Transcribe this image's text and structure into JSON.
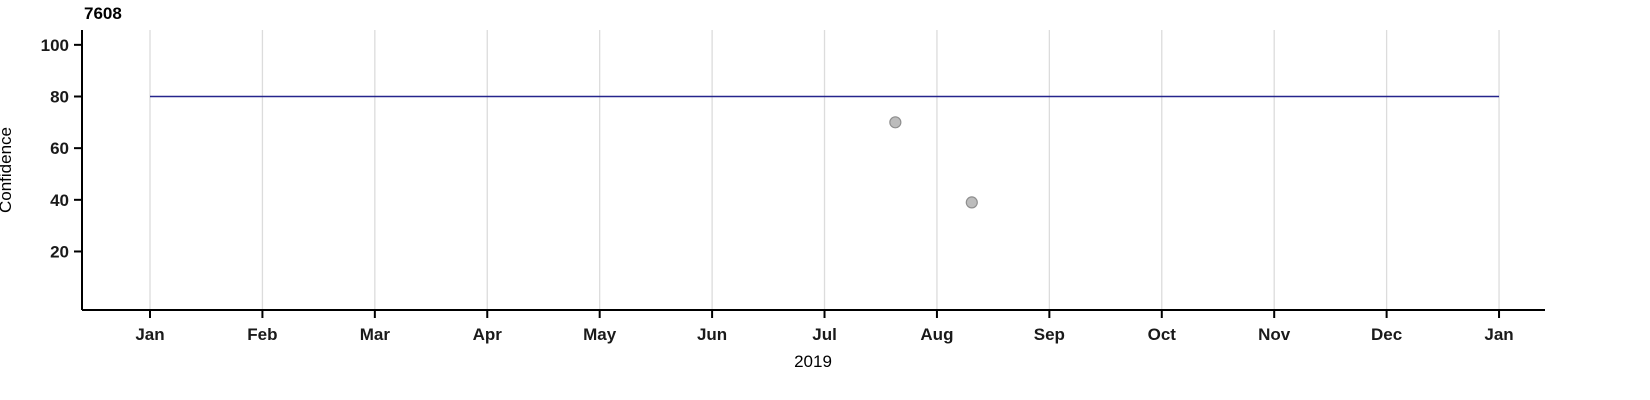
{
  "chart_data": {
    "type": "scatter",
    "title": "7608",
    "xlabel": "2019",
    "ylabel": "Confidence",
    "x_ticks": [
      "Jan",
      "Feb",
      "Mar",
      "Apr",
      "May",
      "Jun",
      "Jul",
      "Aug",
      "Sep",
      "Oct",
      "Nov",
      "Dec",
      "Jan"
    ],
    "y_ticks": [
      20,
      40,
      60,
      80,
      100
    ],
    "ylim": [
      -3,
      105
    ],
    "grid": "vertical-month-gridlines-only",
    "legend": "none",
    "series": [
      {
        "name": "threshold-line",
        "type": "line",
        "color": "#26258c",
        "points": [
          {
            "month_frac": 0,
            "value": 80
          },
          {
            "month_frac": 12,
            "value": 80
          }
        ]
      },
      {
        "name": "observations",
        "type": "scatter",
        "color": "#bcbcbc",
        "stroke": "#8f8f8f",
        "points": [
          {
            "month_frac": 6.63,
            "value": 70
          },
          {
            "month_frac": 7.31,
            "value": 39
          }
        ]
      }
    ],
    "colors": {
      "axis": "#000000",
      "gridline": "#dcdcdc",
      "tick_text": "#1a1a1a"
    }
  }
}
